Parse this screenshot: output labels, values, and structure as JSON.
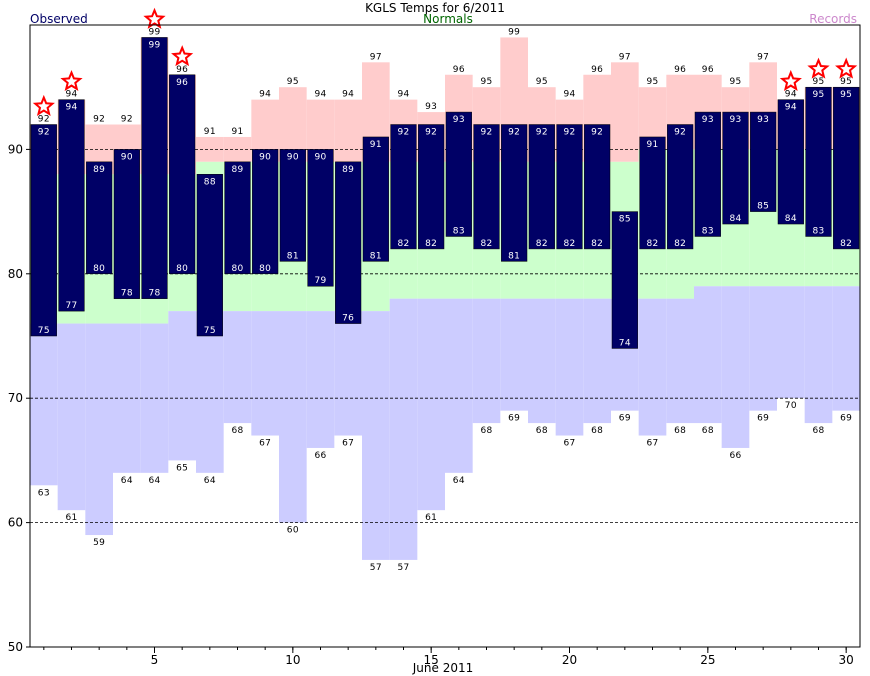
{
  "chart_data": {
    "type": "bar",
    "title": "KGLS Temps for 6/2011",
    "xlabel": "June 2011",
    "ylabel": "",
    "legend": {
      "observed": "Observed",
      "normals": "Normals",
      "records": "Records"
    },
    "ylim": [
      50,
      100
    ],
    "y_ticks": [
      50,
      60,
      70,
      80,
      90
    ],
    "xlim": [
      0.5,
      30.5
    ],
    "x_ticks": [
      5,
      10,
      15,
      20,
      25,
      30
    ],
    "days": [
      1,
      2,
      3,
      4,
      5,
      6,
      7,
      8,
      9,
      10,
      11,
      12,
      13,
      14,
      15,
      16,
      17,
      18,
      19,
      20,
      21,
      22,
      23,
      24,
      25,
      26,
      27,
      28,
      29,
      30
    ],
    "series": [
      {
        "name": "Observed",
        "key": "obs_high",
        "values": [
          92,
          94,
          89,
          90,
          99,
          96,
          88,
          89,
          90,
          90,
          90,
          89,
          91,
          92,
          92,
          93,
          92,
          92,
          92,
          92,
          92,
          85,
          91,
          92,
          93,
          93,
          93,
          94,
          95,
          95
        ]
      },
      {
        "name": "Observed",
        "key": "obs_low",
        "values": [
          75,
          77,
          80,
          78,
          78,
          80,
          75,
          80,
          80,
          81,
          79,
          76,
          81,
          82,
          82,
          83,
          82,
          81,
          82,
          82,
          82,
          74,
          82,
          82,
          83,
          84,
          85,
          84,
          83,
          82
        ]
      },
      {
        "name": "Normals",
        "key": "normal_high",
        "values": [
          88,
          88,
          88,
          88,
          88,
          88,
          89,
          89,
          89,
          89,
          89,
          89,
          89,
          89,
          89,
          89,
          89,
          89,
          89,
          89,
          89,
          89,
          90,
          90,
          90,
          90,
          90,
          90,
          90,
          90
        ]
      },
      {
        "name": "Normals",
        "key": "normal_low",
        "values": [
          76,
          76,
          76,
          76,
          76,
          77,
          77,
          77,
          77,
          77,
          77,
          77,
          77,
          78,
          78,
          78,
          78,
          78,
          78,
          78,
          78,
          78,
          78,
          78,
          79,
          79,
          79,
          79,
          79,
          79
        ]
      },
      {
        "name": "Records",
        "key": "record_high",
        "values": [
          92,
          94,
          92,
          92,
          99,
          96,
          91,
          91,
          94,
          95,
          94,
          94,
          97,
          94,
          93,
          96,
          95,
          99,
          95,
          94,
          96,
          97,
          95,
          96,
          96,
          95,
          97,
          94,
          95,
          95
        ]
      },
      {
        "name": "Records",
        "key": "record_low",
        "values": [
          63,
          61,
          59,
          64,
          64,
          65,
          64,
          68,
          67,
          60,
          66,
          67,
          57,
          57,
          61,
          64,
          68,
          69,
          68,
          67,
          68,
          69,
          67,
          68,
          68,
          66,
          69,
          70,
          68,
          69
        ]
      }
    ],
    "record_high_set": [
      1,
      2,
      5,
      6,
      28,
      29,
      30
    ],
    "gridlines": [
      60,
      70,
      80,
      90
    ],
    "colors": {
      "observed": "#000066",
      "observed_label": "#000066",
      "normals": "#006600",
      "records": "#cc88cc",
      "record_high_fill": "#ffcccc",
      "normal_fill": "#ccffcc",
      "record_low_fill": "#ccccff",
      "star": "#ff0000",
      "bar_text": "#ffffff"
    }
  }
}
